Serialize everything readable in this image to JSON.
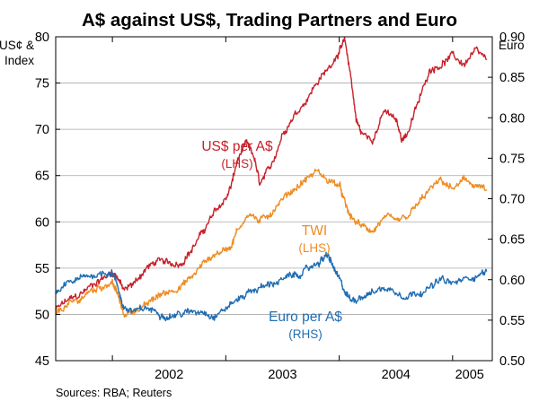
{
  "chart_data": {
    "type": "line",
    "title": "A$ against US$, Trading Partners and Euro",
    "left_axis_label": [
      "US¢ &",
      "Index"
    ],
    "right_axis_label": "Euro",
    "source": "Sources: RBA; Reuters",
    "ylim_left": [
      45,
      80
    ],
    "ylim_right": [
      0.5,
      0.9
    ],
    "yticks_left": [
      "45",
      "50",
      "55",
      "60",
      "65",
      "70",
      "75",
      "80"
    ],
    "yticks_right": [
      "0.50",
      "0.55",
      "0.60",
      "0.65",
      "0.70",
      "0.75",
      "0.80",
      "0.85",
      "0.90"
    ],
    "x_range": [
      2001.5,
      2005.35
    ],
    "x_boundaries": [
      2002.0,
      2003.0,
      2004.0,
      2005.0
    ],
    "x_labels": [
      {
        "text": "2002",
        "x": 2002.5
      },
      {
        "text": "2003",
        "x": 2003.5
      },
      {
        "text": "2004",
        "x": 2004.5
      },
      {
        "text": "2005",
        "x": 2005.15
      }
    ],
    "grid": true,
    "series": [
      {
        "name": "US$ per A$",
        "axis": "left",
        "color": "#c8202a",
        "label": [
          "US$ per A$",
          "(LHS)"
        ],
        "x": [
          2001.5,
          2001.6,
          2001.7,
          2001.8,
          2001.9,
          2002.0,
          2002.05,
          2002.1,
          2002.2,
          2002.3,
          2002.4,
          2002.5,
          2002.6,
          2002.7,
          2002.8,
          2002.9,
          2003.0,
          2003.05,
          2003.1,
          2003.18,
          2003.25,
          2003.3,
          2003.4,
          2003.5,
          2003.6,
          2003.7,
          2003.8,
          2003.9,
          2004.0,
          2004.05,
          2004.1,
          2004.15,
          2004.2,
          2004.3,
          2004.4,
          2004.5,
          2004.55,
          2004.6,
          2004.7,
          2004.8,
          2004.9,
          2005.0,
          2005.1,
          2005.2,
          2005.3
        ],
        "values": [
          50.5,
          51.5,
          52.0,
          53.0,
          53.8,
          54.5,
          54.0,
          52.5,
          53.5,
          55.0,
          55.8,
          55.5,
          55.5,
          57.0,
          59.0,
          61.0,
          62.5,
          64.0,
          66.5,
          68.5,
          67.0,
          64.0,
          66.0,
          69.5,
          71.5,
          73.0,
          75.0,
          76.5,
          78.5,
          79.5,
          76.0,
          71.0,
          69.5,
          69.0,
          72.0,
          71.0,
          69.0,
          69.5,
          73.0,
          76.5,
          77.0,
          78.0,
          77.0,
          78.5,
          77.5
        ]
      },
      {
        "name": "TWI",
        "axis": "left",
        "color": "#ef8c22",
        "label": [
          "TWI",
          "(LHS)"
        ],
        "x": [
          2001.5,
          2001.6,
          2001.7,
          2001.8,
          2001.9,
          2002.0,
          2002.05,
          2002.1,
          2002.2,
          2002.3,
          2002.4,
          2002.5,
          2002.6,
          2002.7,
          2002.8,
          2002.9,
          2003.0,
          2003.05,
          2003.1,
          2003.2,
          2003.3,
          2003.4,
          2003.5,
          2003.6,
          2003.7,
          2003.8,
          2003.9,
          2004.0,
          2004.05,
          2004.1,
          2004.2,
          2004.3,
          2004.4,
          2004.5,
          2004.6,
          2004.7,
          2004.8,
          2004.9,
          2005.0,
          2005.1,
          2005.2,
          2005.3
        ],
        "values": [
          50.0,
          51.0,
          51.5,
          52.5,
          53.0,
          53.5,
          52.0,
          50.0,
          50.5,
          51.0,
          52.0,
          52.5,
          53.0,
          54.0,
          55.5,
          56.5,
          57.0,
          57.5,
          59.0,
          61.0,
          60.0,
          61.0,
          62.5,
          63.5,
          64.5,
          65.5,
          64.5,
          64.0,
          62.0,
          60.5,
          59.5,
          59.0,
          60.5,
          60.0,
          60.5,
          62.0,
          63.5,
          64.5,
          63.5,
          64.5,
          64.0,
          63.5
        ]
      },
      {
        "name": "Euro per A$",
        "axis": "right",
        "color": "#1f6db3",
        "label": [
          "Euro per A$",
          "(RHS)"
        ],
        "x": [
          2001.5,
          2001.6,
          2001.7,
          2001.8,
          2001.9,
          2002.0,
          2002.05,
          2002.1,
          2002.2,
          2002.3,
          2002.4,
          2002.5,
          2002.6,
          2002.7,
          2002.8,
          2002.9,
          2003.0,
          2003.1,
          2003.2,
          2003.3,
          2003.4,
          2003.5,
          2003.6,
          2003.7,
          2003.8,
          2003.85,
          2003.9,
          2003.95,
          2004.0,
          2004.05,
          2004.1,
          2004.2,
          2004.3,
          2004.4,
          2004.5,
          2004.6,
          2004.7,
          2004.8,
          2004.9,
          2005.0,
          2005.1,
          2005.2,
          2005.3
        ],
        "values": [
          0.58,
          0.595,
          0.6,
          0.605,
          0.608,
          0.61,
          0.59,
          0.565,
          0.56,
          0.565,
          0.56,
          0.555,
          0.558,
          0.56,
          0.562,
          0.555,
          0.565,
          0.575,
          0.585,
          0.59,
          0.595,
          0.6,
          0.605,
          0.61,
          0.62,
          0.625,
          0.63,
          0.615,
          0.6,
          0.585,
          0.575,
          0.58,
          0.585,
          0.59,
          0.585,
          0.58,
          0.585,
          0.59,
          0.6,
          0.595,
          0.6,
          0.605,
          0.61
        ]
      }
    ]
  }
}
